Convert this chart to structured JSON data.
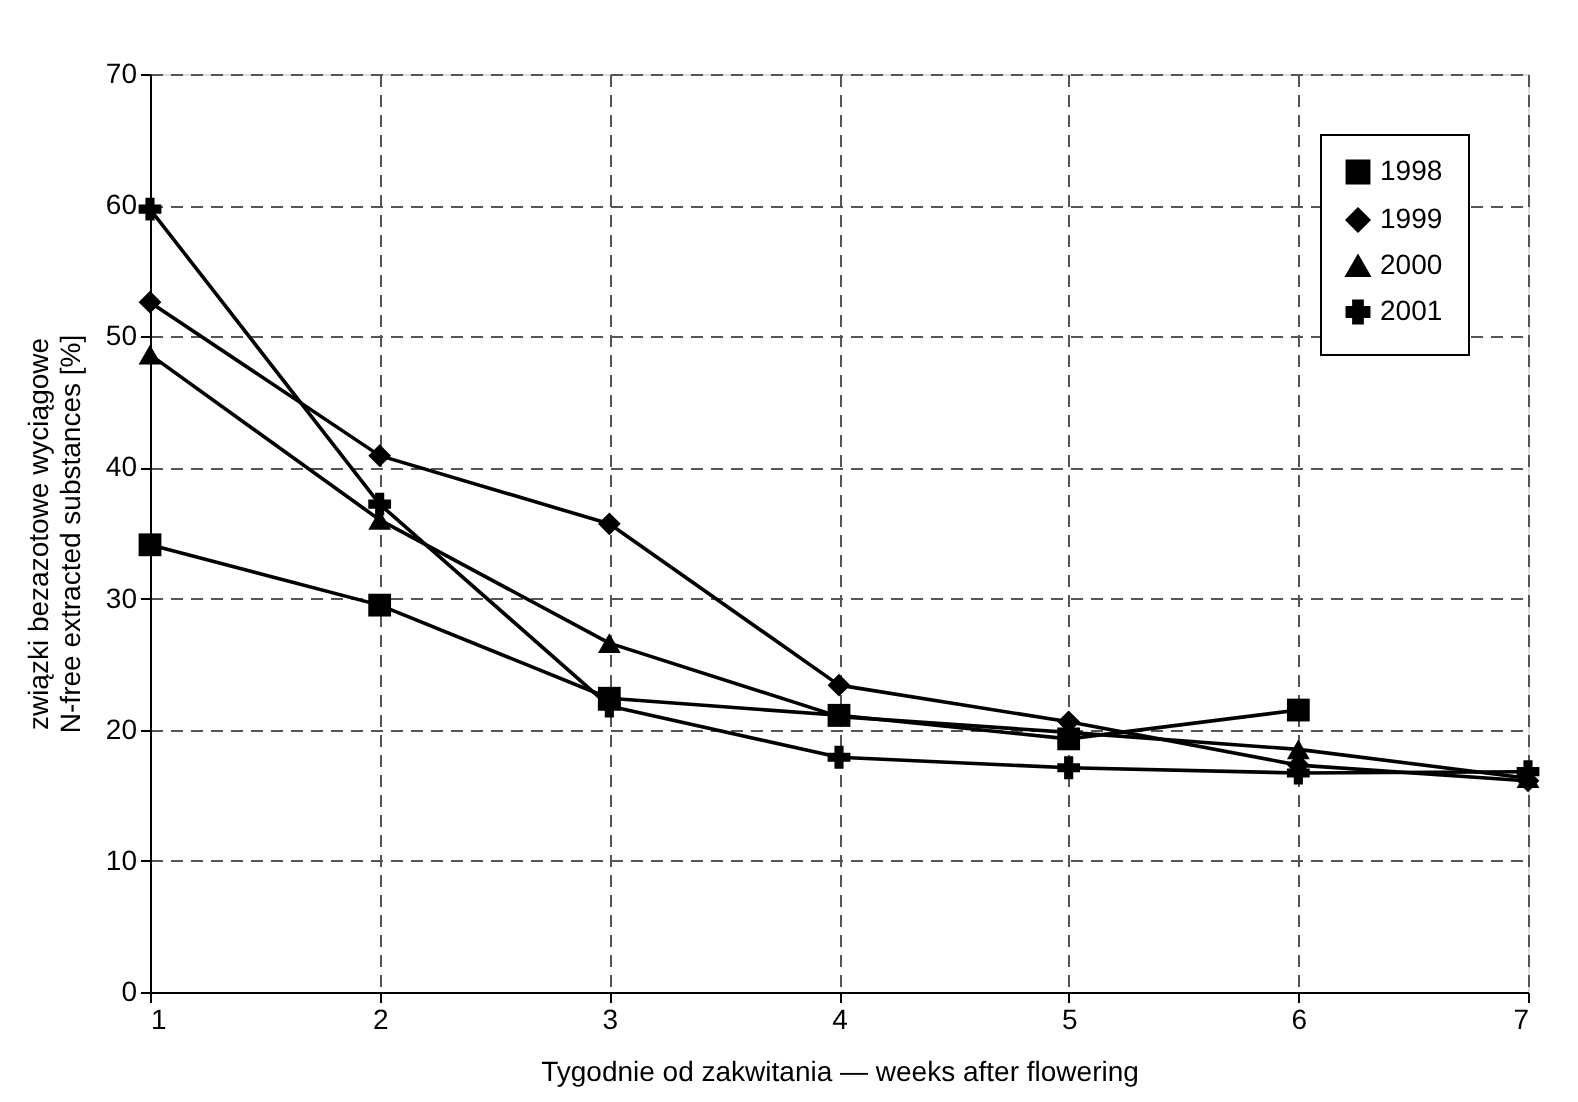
{
  "chart_data": {
    "type": "line",
    "x": [
      1,
      2,
      3,
      4,
      5,
      6,
      7
    ],
    "xlabel": "Tygodnie od zakwitania — weeks after flowering",
    "ylabel": "związki bezazotowe wyciągowe\nN-free extracted substances [%]",
    "xlim": [
      1,
      7
    ],
    "xticks": [
      1,
      2,
      3,
      4,
      5,
      6,
      7
    ],
    "ylim": [
      0,
      70
    ],
    "yticks": [
      0,
      10,
      20,
      30,
      40,
      50,
      60,
      70
    ],
    "grid": true,
    "legend": "top right",
    "line_style": "solid",
    "series": [
      {
        "name": "1998",
        "color": "#000000",
        "marker": "square",
        "values": [
          34.1,
          29.5,
          22.4,
          21.1,
          19.3,
          21.5,
          null
        ]
      },
      {
        "name": "1999",
        "color": "#000000",
        "marker": "diamond",
        "values": [
          52.6,
          40.9,
          35.7,
          23.4,
          20.6,
          17.3,
          16.1
        ]
      },
      {
        "name": "2000",
        "color": "#000000",
        "marker": "triangle",
        "values": [
          48.6,
          36.0,
          26.6,
          21.0,
          19.8,
          18.5,
          16.3
        ]
      },
      {
        "name": "2001",
        "color": "#000000",
        "marker": "cross",
        "values": [
          59.7,
          37.2,
          21.8,
          17.9,
          17.1,
          16.7,
          16.8
        ]
      }
    ]
  }
}
